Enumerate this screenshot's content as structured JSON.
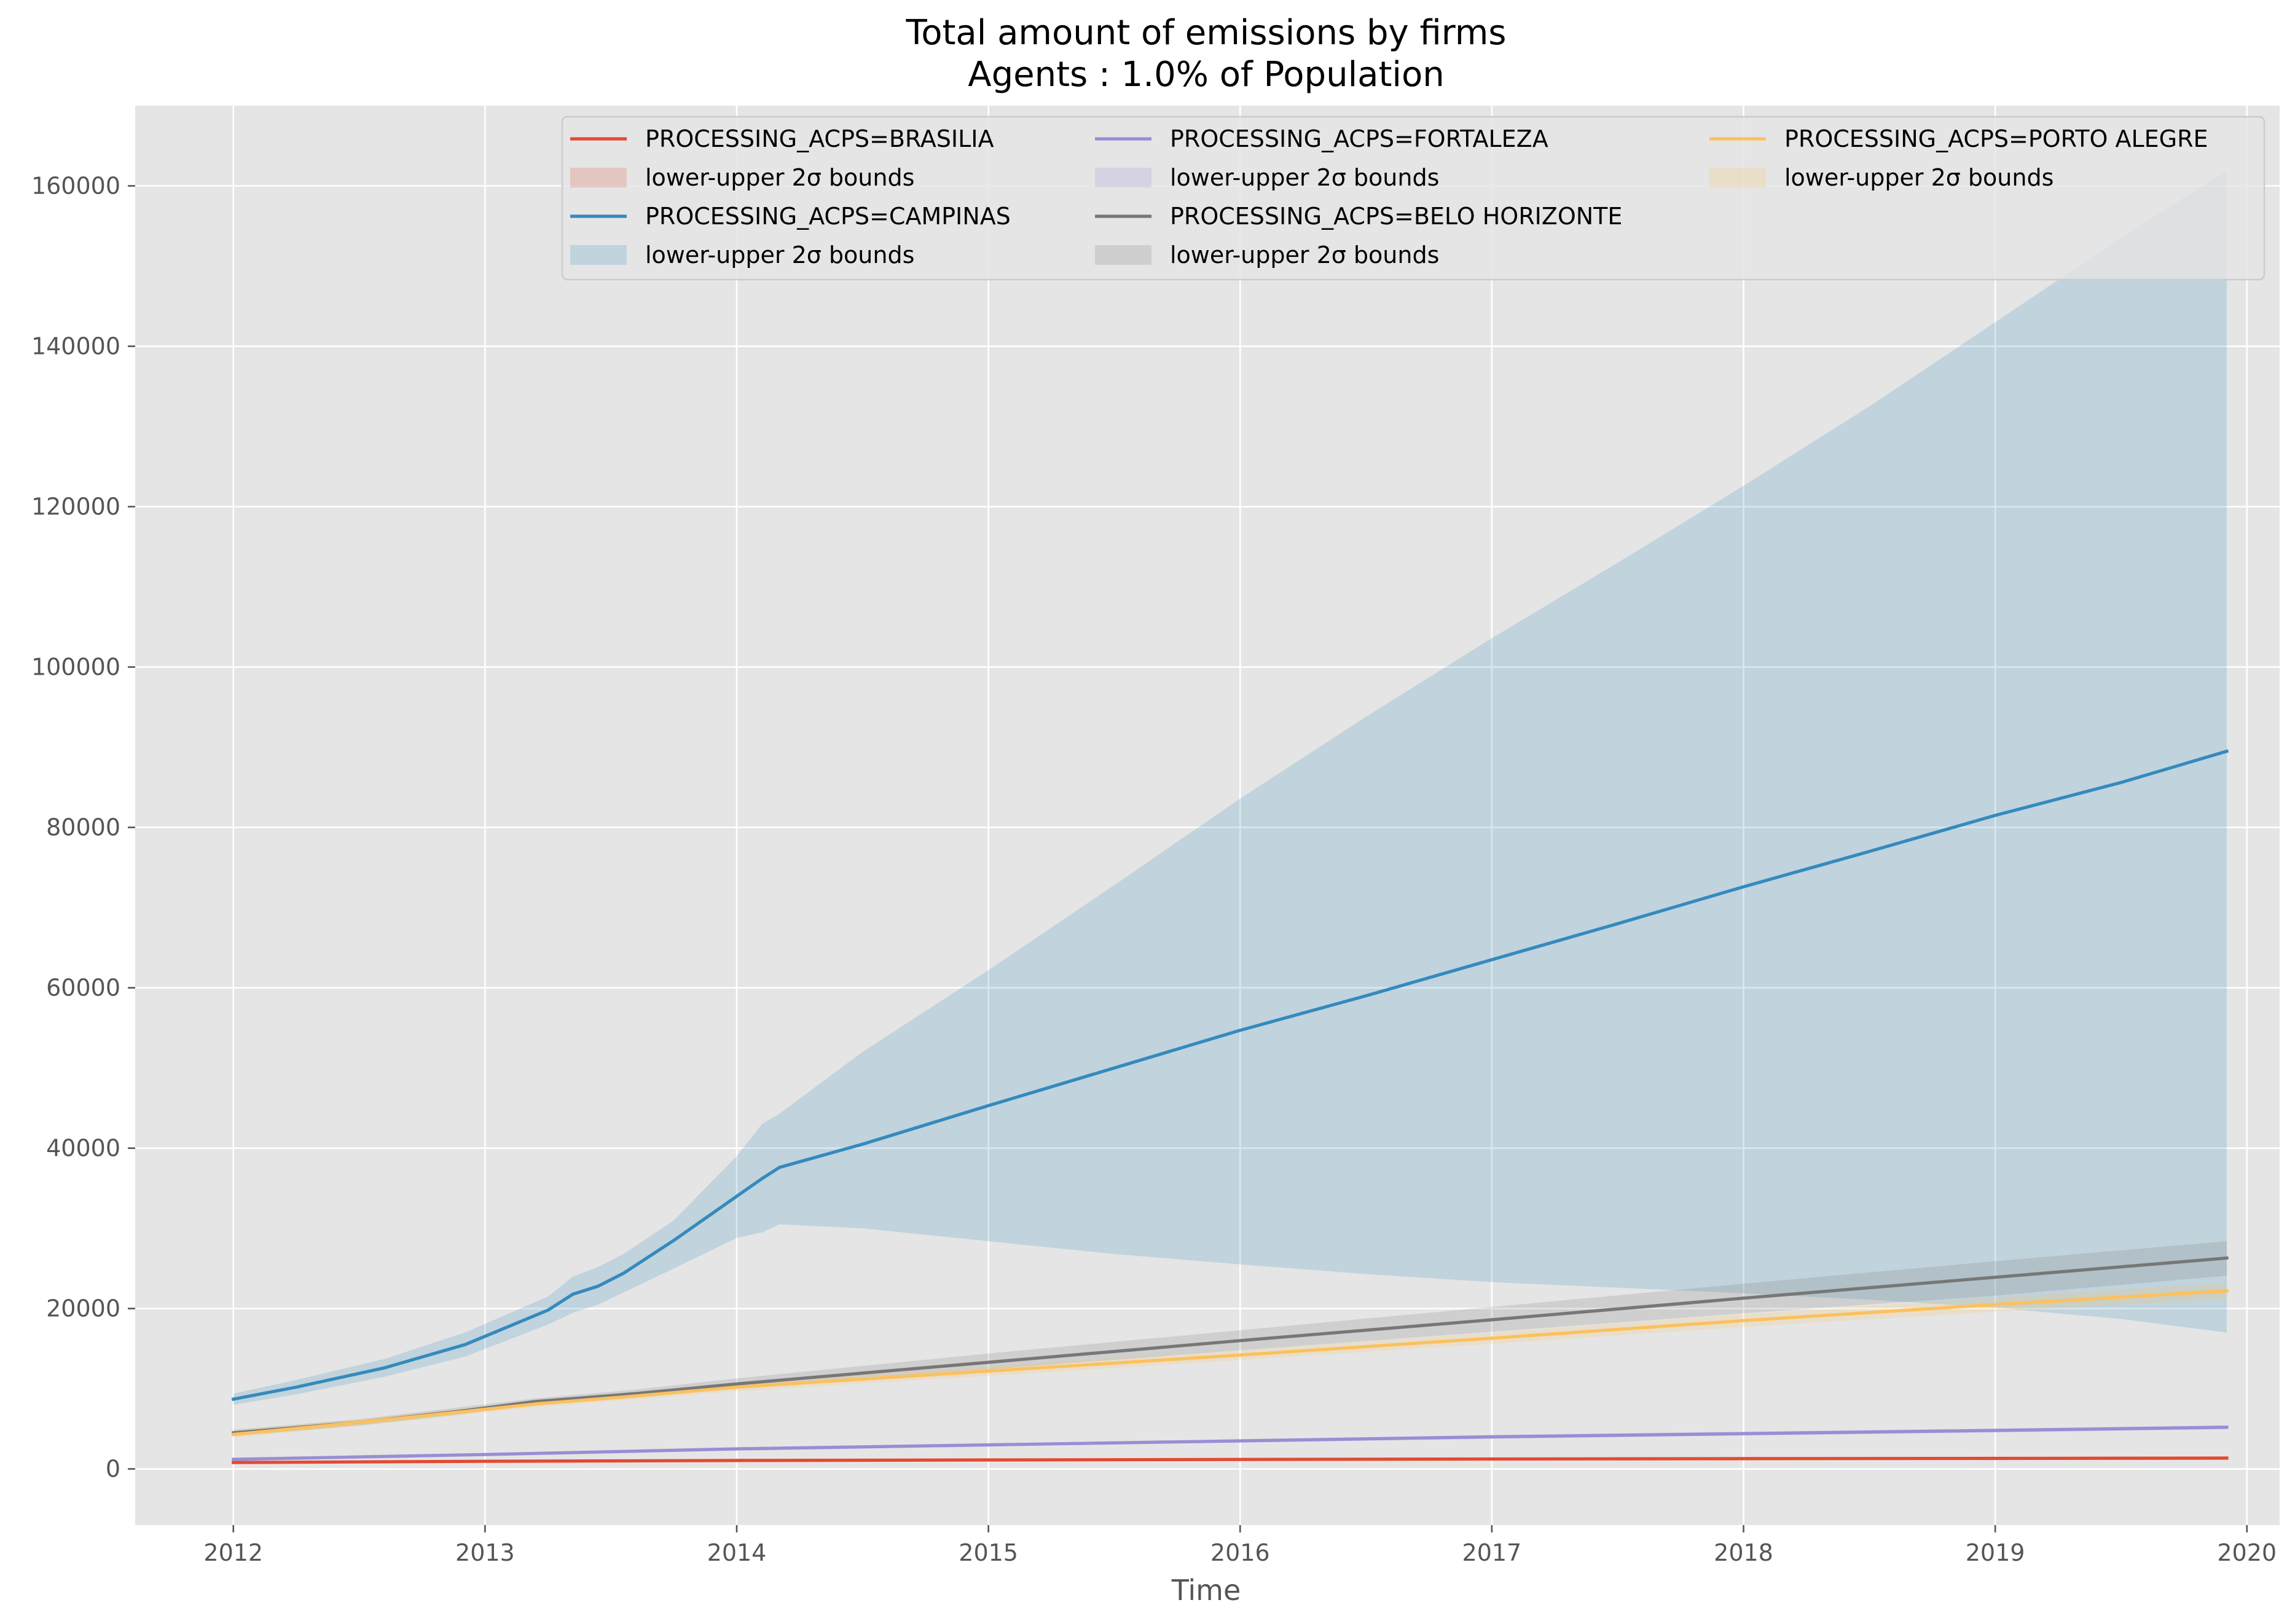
{
  "chart_data": {
    "type": "line",
    "title": "Total amount of emissions by firms",
    "subtitle": "Agents : 1.0% of Population",
    "xlabel": "Time",
    "ylabel": "",
    "xlim": [
      2011.61,
      2020.13
    ],
    "ylim": [
      -7000,
      170000
    ],
    "x_ticks": [
      "2012",
      "2013",
      "2014",
      "2015",
      "2016",
      "2017",
      "2018",
      "2019",
      "2020"
    ],
    "y_ticks": [
      "0",
      "20000",
      "40000",
      "60000",
      "80000",
      "100000",
      "120000",
      "140000",
      "160000"
    ],
    "grid": true,
    "legend_position": "top",
    "band_label": "lower-upper 2σ bounds",
    "series": [
      {
        "name": "PROCESSING_ACPS=BRASILIA",
        "color": "#E24A33",
        "x": [
          2012.0,
          2013.0,
          2014.0,
          2015.0,
          2016.0,
          2017.0,
          2018.0,
          2019.0,
          2019.92
        ],
        "y": [
          800,
          950,
          1050,
          1120,
          1180,
          1240,
          1280,
          1310,
          1350
        ],
        "lower": [
          700,
          850,
          950,
          1020,
          1080,
          1140,
          1180,
          1210,
          1250
        ],
        "upper": [
          900,
          1050,
          1150,
          1220,
          1280,
          1340,
          1380,
          1410,
          1450
        ]
      },
      {
        "name": "PROCESSING_ACPS=CAMPINAS",
        "color": "#348ABD",
        "x": [
          2012.0,
          2012.25,
          2012.6,
          2012.92,
          2013.25,
          2013.35,
          2013.45,
          2013.55,
          2013.75,
          2014.0,
          2014.1,
          2014.17,
          2014.5,
          2015.0,
          2015.5,
          2016.0,
          2016.5,
          2017.0,
          2017.5,
          2018.0,
          2018.5,
          2019.0,
          2019.5,
          2019.92
        ],
        "y": [
          8700,
          10200,
          12600,
          15500,
          19800,
          21800,
          22800,
          24400,
          28500,
          34000,
          36200,
          37600,
          40500,
          45300,
          50000,
          54700,
          59000,
          63500,
          68000,
          72600,
          77000,
          81500,
          85600,
          89500
        ],
        "lower": [
          8000,
          9300,
          11500,
          14000,
          18000,
          19500,
          20500,
          22000,
          25000,
          28800,
          29500,
          30500,
          30000,
          28400,
          26800,
          25500,
          24300,
          23300,
          22600,
          21900,
          21100,
          20100,
          18700,
          17000
        ],
        "upper": [
          9400,
          11100,
          13700,
          17000,
          21500,
          24000,
          25200,
          26800,
          31000,
          39000,
          43000,
          44300,
          52000,
          62200,
          72800,
          83600,
          93800,
          103600,
          113000,
          122600,
          132500,
          143000,
          153500,
          162000
        ]
      },
      {
        "name": "PROCESSING_ACPS=FORTALEZA",
        "color": "#988ED5",
        "x": [
          2012.0,
          2013.0,
          2014.0,
          2015.0,
          2016.0,
          2017.0,
          2018.0,
          2019.0,
          2019.92
        ],
        "y": [
          1200,
          1800,
          2500,
          3000,
          3500,
          4000,
          4400,
          4800,
          5200
        ],
        "lower": [
          1050,
          1650,
          2300,
          2800,
          3300,
          3750,
          4150,
          4550,
          4950
        ],
        "upper": [
          1350,
          1950,
          2700,
          3200,
          3700,
          4250,
          4650,
          5050,
          5450
        ]
      },
      {
        "name": "PROCESSING_ACPS=BELO HORIZONTE",
        "color": "#777777",
        "x": [
          2012.0,
          2012.5,
          2012.9,
          2013.2,
          2013.6,
          2014.0,
          2015.0,
          2016.0,
          2017.0,
          2018.0,
          2019.0,
          2019.92
        ],
        "y": [
          4500,
          5800,
          7200,
          8400,
          9400,
          10600,
          13300,
          16000,
          18600,
          21300,
          23900,
          26300
        ],
        "lower": [
          4100,
          5400,
          6800,
          8000,
          8900,
          10000,
          12400,
          14800,
          17100,
          19400,
          21600,
          24100
        ],
        "upper": [
          4900,
          6200,
          7700,
          8800,
          9900,
          11300,
          14400,
          17300,
          20200,
          23100,
          25900,
          28400
        ]
      },
      {
        "name": "PROCESSING_ACPS=PORTO ALEGRE",
        "color": "#FBC15E",
        "x": [
          2012.0,
          2012.5,
          2012.9,
          2013.2,
          2013.6,
          2014.0,
          2015.0,
          2016.0,
          2017.0,
          2018.0,
          2019.0,
          2019.92
        ],
        "y": [
          4300,
          5800,
          7100,
          8100,
          9100,
          10200,
          12200,
          14200,
          16300,
          18500,
          20500,
          22200
        ],
        "lower": [
          3900,
          5400,
          6700,
          7700,
          8700,
          9700,
          11600,
          13600,
          15600,
          17700,
          19600,
          21200
        ],
        "upper": [
          4800,
          6200,
          7500,
          8500,
          9500,
          10700,
          12800,
          14800,
          17000,
          19300,
          21400,
          23200
        ]
      }
    ]
  }
}
